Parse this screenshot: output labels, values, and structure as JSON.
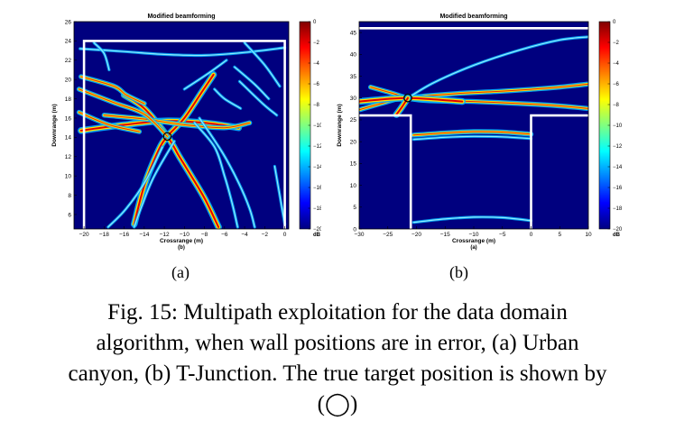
{
  "figure": {
    "caption_lines": [
      "Fig. 15: Multipath exploitation for the data domain",
      "algorithm, when wall positions are in error, (a) Urban",
      "canyon, (b) T-Junction. The true target position is shown by",
      "(◯)"
    ],
    "subfigures": [
      {
        "label": "(a)"
      },
      {
        "label": "(b)"
      }
    ]
  },
  "colors": {
    "wall": "#ffffff",
    "background": "#00007f",
    "stripe_outer": "#00b0ff",
    "stripe_mid": "#ffe000",
    "stripe_inner": "#e00000"
  },
  "chart_data": [
    {
      "type": "heatmap",
      "title": "Modified beamforming",
      "panel_tag": "(b)",
      "xlabel": "Crossrange (m)",
      "ylabel": "Downrange (m)",
      "xlim": [
        -21,
        0.4
      ],
      "ylim": [
        4.5,
        26
      ],
      "xticks": [
        -20,
        -18,
        -16,
        -14,
        -12,
        -10,
        -8,
        -6,
        -4,
        -2,
        0
      ],
      "yticks": [
        6,
        8,
        10,
        12,
        14,
        16,
        18,
        20,
        22,
        24,
        26
      ],
      "colorbar": {
        "min": -20,
        "max": 0,
        "ticks": [
          0,
          -2,
          -4,
          -6,
          -8,
          -10,
          -12,
          -14,
          -16,
          -18,
          -20
        ],
        "unit": "dB"
      },
      "walls": [
        [
          [
            -20,
            4.5
          ],
          [
            -20,
            24
          ],
          [
            0,
            24
          ],
          [
            0,
            4.5
          ]
        ]
      ],
      "target": {
        "x": -11.7,
        "y": 14.1
      },
      "arcs": [
        {
          "pts": [
            [
              -20.3,
              14.7
            ],
            [
              -16,
              15.3
            ],
            [
              -12,
              15.7
            ],
            [
              -8,
              15.5
            ],
            [
              -4.6,
              15
            ]
          ],
          "level": "high"
        },
        {
          "pts": [
            [
              -16,
              18.4
            ],
            [
              -14,
              17
            ],
            [
              -11.7,
              14.1
            ],
            [
              -10.5,
              12
            ],
            [
              -9.2,
              9.8
            ],
            [
              -7.9,
              7.5
            ],
            [
              -6.6,
              4.7
            ]
          ],
          "level": "high"
        },
        {
          "pts": [
            [
              -15,
              5
            ],
            [
              -14,
              9
            ],
            [
              -12.6,
              12.6
            ],
            [
              -11.7,
              14.1
            ],
            [
              -10,
              16
            ],
            [
              -8.2,
              18.8
            ],
            [
              -7.1,
              20.5
            ]
          ],
          "level": "high"
        },
        {
          "pts": [
            [
              -18,
              16.3
            ],
            [
              -14,
              15.9
            ],
            [
              -10,
              15.3
            ],
            [
              -6,
              15
            ],
            [
              -3.5,
              15.5
            ]
          ],
          "level": "medium"
        },
        {
          "pts": [
            [
              -20.5,
              19
            ],
            [
              -17,
              17.6
            ],
            [
              -14,
              16.4
            ],
            [
              -11.7,
              14.1
            ]
          ],
          "level": "medium"
        },
        {
          "pts": [
            [
              -20.3,
              20.3
            ],
            [
              -17,
              19.3
            ],
            [
              -15.8,
              18.4
            ],
            [
              -14,
              17.5
            ]
          ],
          "level": "medium"
        },
        {
          "pts": [
            [
              -20.5,
              16.6
            ],
            [
              -17.5,
              15.3
            ],
            [
              -14.5,
              14.6
            ]
          ],
          "level": "medium"
        },
        {
          "pts": [
            [
              -9,
              15.5
            ],
            [
              -7,
              13
            ],
            [
              -6,
              10
            ],
            [
              -5.2,
              7
            ],
            [
              -4.7,
              4.7
            ]
          ],
          "level": "low"
        },
        {
          "pts": [
            [
              -8.5,
              16
            ],
            [
              -6.2,
              12.4
            ],
            [
              -4.6,
              9.3
            ],
            [
              -3.5,
              6.6
            ],
            [
              -3,
              4.7
            ]
          ],
          "level": "low"
        },
        {
          "pts": [
            [
              -11,
              13.6
            ],
            [
              -13,
              10
            ],
            [
              -14.2,
              7
            ],
            [
              -15,
              4.7
            ]
          ],
          "level": "low"
        },
        {
          "pts": [
            [
              -12.2,
              13
            ],
            [
              -13.8,
              9.6
            ],
            [
              -15.8,
              6.6
            ],
            [
              -17.6,
              4.7
            ]
          ],
          "level": "low"
        },
        {
          "pts": [
            [
              -20.4,
              23.2
            ],
            [
              -16,
              22.9
            ],
            [
              -12,
              22.6
            ],
            [
              -8,
              22.5
            ],
            [
              -4,
              22.8
            ],
            [
              0,
              23.3
            ]
          ],
          "level": "low"
        },
        {
          "pts": [
            [
              -19,
              23.8
            ],
            [
              -18,
              22.7
            ],
            [
              -17.5,
              21
            ]
          ],
          "level": "low"
        },
        {
          "pts": [
            [
              -4,
              23.8
            ],
            [
              -2,
              21.5
            ],
            [
              -0.5,
              19.3
            ]
          ],
          "level": "low"
        },
        {
          "pts": [
            [
              -10,
              19
            ],
            [
              -7.8,
              20.5
            ],
            [
              -5.8,
              22
            ]
          ],
          "level": "low"
        },
        {
          "pts": [
            [
              -7,
              19
            ],
            [
              -6,
              18
            ],
            [
              -4.4,
              17
            ]
          ],
          "level": "low"
        },
        {
          "pts": [
            [
              -5,
              21.3
            ],
            [
              -3,
              19.5
            ],
            [
              -1.6,
              18
            ]
          ],
          "level": "low"
        },
        {
          "pts": [
            [
              -4.5,
              19.8
            ],
            [
              -2.2,
              17.5
            ],
            [
              -0.8,
              16.3
            ]
          ],
          "level": "low"
        },
        {
          "pts": [
            [
              -1,
              11
            ],
            [
              -0.5,
              8
            ],
            [
              0,
              5
            ]
          ],
          "level": "low"
        }
      ]
    },
    {
      "type": "heatmap",
      "title": "Modified beamforming",
      "panel_tag": "(a)",
      "xlabel": "Crossrange (m)",
      "ylabel": "Downrange (m)",
      "xlim": [
        -30,
        10
      ],
      "ylim": [
        0,
        47.5
      ],
      "xticks": [
        -30,
        -25,
        -20,
        -15,
        -10,
        -5,
        0,
        5,
        10
      ],
      "yticks": [
        0,
        5,
        10,
        15,
        20,
        25,
        30,
        35,
        40,
        45
      ],
      "colorbar": {
        "min": -20,
        "max": 0,
        "ticks": [
          0,
          -2,
          -4,
          -6,
          -8,
          -10,
          -12,
          -14,
          -16,
          -18,
          -20
        ],
        "unit": "dB"
      },
      "walls": [
        [
          [
            -30,
            46
          ],
          [
            10,
            46
          ]
        ],
        [
          [
            -30,
            26
          ],
          [
            -21,
            26
          ],
          [
            -21,
            0
          ]
        ],
        [
          [
            10,
            26
          ],
          [
            0,
            26
          ],
          [
            0,
            0
          ]
        ]
      ],
      "target": {
        "x": -21.5,
        "y": 30
      },
      "arcs": [
        {
          "pts": [
            [
              -30,
              27.3
            ],
            [
              -26,
              28.8
            ],
            [
              -23,
              29.9
            ],
            [
              -21.5,
              30
            ],
            [
              -18,
              30.5
            ],
            [
              -12,
              31.1
            ],
            [
              -6,
              31.5
            ],
            [
              0,
              32
            ],
            [
              5,
              32.5
            ],
            [
              10,
              33.2
            ]
          ],
          "level": "medium"
        },
        {
          "pts": [
            [
              -28,
              32.5
            ],
            [
              -24.5,
              31.2
            ],
            [
              -21.5,
              30
            ],
            [
              -18,
              29.4
            ],
            [
              -10,
              29.2
            ],
            [
              0,
              28.6
            ],
            [
              5,
              28.2
            ],
            [
              10,
              27.6
            ]
          ],
          "level": "medium"
        },
        {
          "pts": [
            [
              -30,
              29.2
            ],
            [
              -25,
              29.8
            ],
            [
              -21.5,
              30
            ],
            [
              -17,
              29.7
            ],
            [
              -12,
              29.2
            ]
          ],
          "level": "high"
        },
        {
          "pts": [
            [
              -21.5,
              30
            ],
            [
              -17,
              33.5
            ],
            [
              -10,
              37.5
            ],
            [
              -2,
              41
            ],
            [
              5,
              43.3
            ],
            [
              10,
              44
            ]
          ],
          "level": "low"
        },
        {
          "pts": [
            [
              -21.5,
              30
            ],
            [
              -22.5,
              28
            ],
            [
              -23.5,
              26.2
            ]
          ],
          "level": "high"
        },
        {
          "pts": [
            [
              -20.5,
              21.5
            ],
            [
              -15,
              22
            ],
            [
              -10,
              22.3
            ],
            [
              -5,
              22.2
            ],
            [
              0,
              21.7
            ]
          ],
          "level": "medium"
        },
        {
          "pts": [
            [
              -20.5,
              20.5
            ],
            [
              -15,
              21
            ],
            [
              -10,
              21.2
            ],
            [
              -5,
              21.1
            ],
            [
              0,
              20.7
            ]
          ],
          "level": "low"
        },
        {
          "pts": [
            [
              -20.5,
              1.5
            ],
            [
              -15,
              2.3
            ],
            [
              -10,
              2.7
            ],
            [
              -5,
              2.6
            ],
            [
              0,
              1.9
            ]
          ],
          "level": "low"
        }
      ]
    }
  ]
}
